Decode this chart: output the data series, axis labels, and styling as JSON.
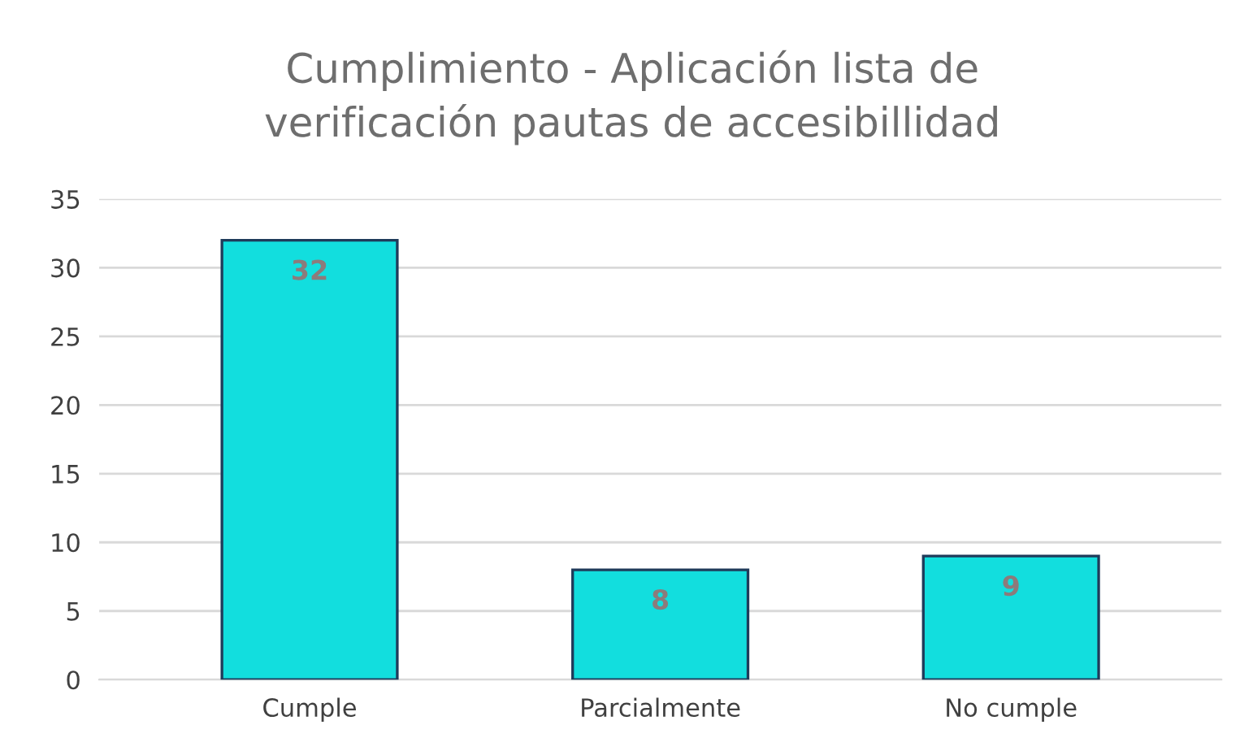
{
  "chart_data": {
    "type": "bar",
    "title": "Cumplimiento - Aplicación lista de\nverificación pautas de accesibillidad",
    "categories": [
      "Cumple",
      "Parcialmente",
      "No cumple"
    ],
    "values": [
      32,
      8,
      9
    ],
    "color": "#12dede",
    "ylim": [
      0,
      35
    ],
    "yticks": [
      0,
      5,
      10,
      15,
      20,
      25,
      30,
      35
    ],
    "grid": "y",
    "data_labels": true
  }
}
